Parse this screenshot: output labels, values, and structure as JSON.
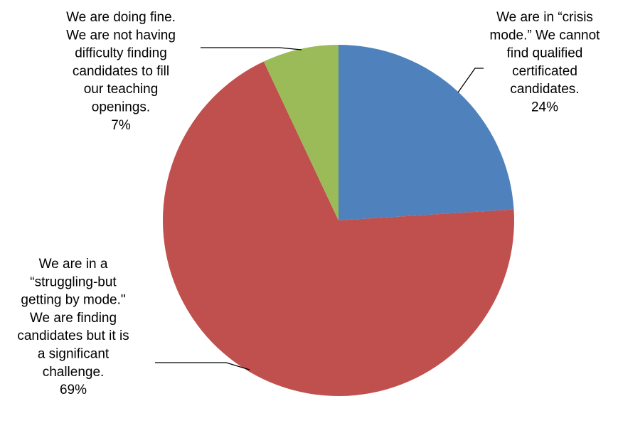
{
  "chart_data": {
    "type": "pie",
    "title": "",
    "slices": [
      {
        "label_lines": [
          "We are in “crisis",
          "mode.”  We cannot",
          "find qualified",
          "certificated",
          "candidates."
        ],
        "value": 24,
        "value_label": "24%",
        "color": "#4F81BD"
      },
      {
        "label_lines": [
          "We are in a",
          "“struggling-but",
          "getting by mode.\"",
          "We are finding",
          "candidates but it is",
          "a significant",
          "challenge."
        ],
        "value": 69,
        "value_label": "69%",
        "color": "#C0504D"
      },
      {
        "label_lines": [
          "We are doing fine.",
          "We are not having",
          "difficulty finding",
          "candidates to fill",
          "our teaching",
          "openings."
        ],
        "value": 7,
        "value_label": "7%",
        "color": "#9BBB59"
      }
    ],
    "start_angle": "12 o'clock",
    "direction": "clockwise",
    "legend": "none",
    "leader_line_color": "#000000"
  }
}
